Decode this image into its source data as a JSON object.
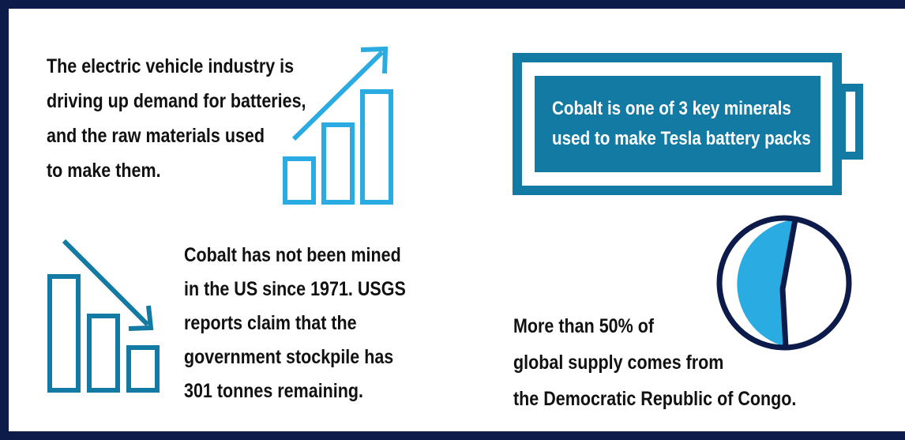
{
  "intro": {
    "lines": [
      "The electric vehicle industry is",
      "driving up demand for batteries,",
      "and the raw materials used",
      "to make them."
    ]
  },
  "battery": {
    "lines": [
      "Cobalt is one of 3 key minerals",
      "used to make Tesla battery packs"
    ]
  },
  "usgs": {
    "lines": [
      "Cobalt has not been mined",
      "in the US since 1971. USGS",
      "reports claim that the",
      "government stockpile has",
      "301 tonnes remaining."
    ]
  },
  "supply": {
    "lines": [
      "More than 50% of",
      "global supply comes from",
      "the Democratic Republic of Congo."
    ]
  },
  "pie": {
    "share_percent": 50
  },
  "colors": {
    "frame": "#0d1b4b",
    "rising_chart": "#2aabe2",
    "falling_chart": "#137aa3",
    "battery": "#137aa3",
    "pie_fill": "#2aabe2",
    "pie_outline": "#0d1b4b"
  },
  "icons": {
    "rising": "rising-bar-chart-icon",
    "falling": "falling-bar-chart-icon",
    "battery": "battery-icon",
    "pie": "pie-chart-icon"
  }
}
